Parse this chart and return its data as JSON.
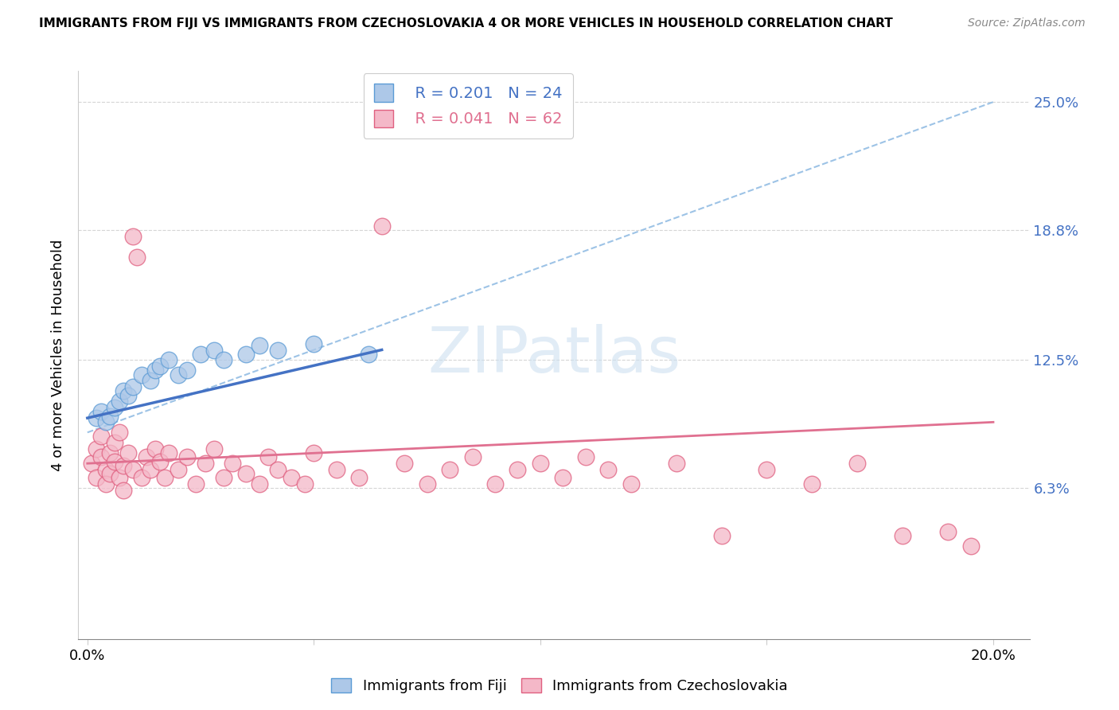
{
  "title": "IMMIGRANTS FROM FIJI VS IMMIGRANTS FROM CZECHOSLOVAKIA 4 OR MORE VEHICLES IN HOUSEHOLD CORRELATION CHART",
  "source": "Source: ZipAtlas.com",
  "ylabel": "4 or more Vehicles in Household",
  "fiji_R": 0.201,
  "fiji_N": 24,
  "czech_R": 0.041,
  "czech_N": 62,
  "xlim": [
    -0.002,
    0.208
  ],
  "ylim": [
    -0.01,
    0.265
  ],
  "ytick_vals": [
    0.063,
    0.125,
    0.188,
    0.25
  ],
  "ytick_labels": [
    "6.3%",
    "12.5%",
    "18.8%",
    "25.0%"
  ],
  "xtick_vals": [
    0.0,
    0.05,
    0.1,
    0.15,
    0.2
  ],
  "xtick_labels": [
    "0.0%",
    "",
    "",
    "",
    "20.0%"
  ],
  "fiji_fill_color": "#adc8e8",
  "fiji_edge_color": "#5b9bd5",
  "czech_fill_color": "#f4b8c8",
  "czech_edge_color": "#e06080",
  "fiji_line_color": "#4472c4",
  "czech_line_color": "#e07090",
  "dashed_line_color": "#9dc3e6",
  "watermark_color": "#cde0f0",
  "fiji_x": [
    0.002,
    0.003,
    0.004,
    0.005,
    0.006,
    0.007,
    0.008,
    0.009,
    0.01,
    0.012,
    0.014,
    0.015,
    0.016,
    0.018,
    0.02,
    0.022,
    0.025,
    0.028,
    0.03,
    0.035,
    0.038,
    0.042,
    0.05,
    0.062
  ],
  "fiji_y": [
    0.097,
    0.1,
    0.095,
    0.098,
    0.102,
    0.105,
    0.11,
    0.108,
    0.112,
    0.118,
    0.115,
    0.12,
    0.122,
    0.125,
    0.118,
    0.12,
    0.128,
    0.13,
    0.125,
    0.128,
    0.132,
    0.13,
    0.133,
    0.128
  ],
  "czech_x": [
    0.001,
    0.002,
    0.002,
    0.003,
    0.003,
    0.004,
    0.004,
    0.005,
    0.005,
    0.006,
    0.006,
    0.007,
    0.007,
    0.008,
    0.008,
    0.009,
    0.01,
    0.01,
    0.011,
    0.012,
    0.013,
    0.014,
    0.015,
    0.016,
    0.017,
    0.018,
    0.02,
    0.022,
    0.024,
    0.026,
    0.028,
    0.03,
    0.032,
    0.035,
    0.038,
    0.04,
    0.042,
    0.045,
    0.048,
    0.05,
    0.055,
    0.06,
    0.065,
    0.07,
    0.075,
    0.08,
    0.085,
    0.09,
    0.095,
    0.1,
    0.105,
    0.11,
    0.115,
    0.12,
    0.13,
    0.14,
    0.15,
    0.16,
    0.17,
    0.18,
    0.19,
    0.195
  ],
  "czech_y": [
    0.075,
    0.082,
    0.068,
    0.078,
    0.088,
    0.072,
    0.065,
    0.08,
    0.07,
    0.076,
    0.085,
    0.068,
    0.09,
    0.074,
    0.062,
    0.08,
    0.072,
    0.185,
    0.175,
    0.068,
    0.078,
    0.072,
    0.082,
    0.076,
    0.068,
    0.08,
    0.072,
    0.078,
    0.065,
    0.075,
    0.082,
    0.068,
    0.075,
    0.07,
    0.065,
    0.078,
    0.072,
    0.068,
    0.065,
    0.08,
    0.072,
    0.068,
    0.19,
    0.075,
    0.065,
    0.072,
    0.078,
    0.065,
    0.072,
    0.075,
    0.068,
    0.078,
    0.072,
    0.065,
    0.075,
    0.04,
    0.072,
    0.065,
    0.075,
    0.04,
    0.042,
    0.035
  ],
  "fiji_line_x0": 0.0,
  "fiji_line_x1": 0.065,
  "fiji_line_y0": 0.097,
  "fiji_line_y1": 0.13,
  "czech_line_x0": 0.0,
  "czech_line_x1": 0.2,
  "czech_line_y0": 0.075,
  "czech_line_y1": 0.095,
  "dash_line_x0": 0.0,
  "dash_line_x1": 0.2,
  "dash_line_y0": 0.09,
  "dash_line_y1": 0.25
}
